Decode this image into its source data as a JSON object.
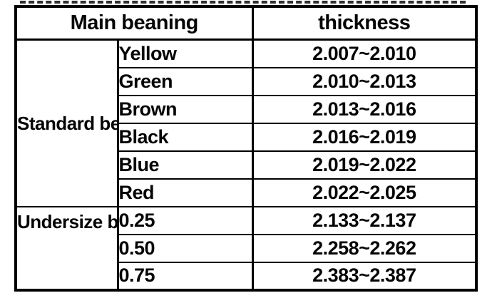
{
  "page": {
    "background": "#ffffff",
    "ink": "#000000"
  },
  "table": {
    "header": {
      "main_bearing": "Main beaning",
      "thickness": "thickness"
    },
    "groups": [
      {
        "name": "Standard bearing",
        "rows": [
          {
            "label": "Yellow",
            "thickness": "2.007~2.010"
          },
          {
            "label": "Green",
            "thickness": "2.010~2.013"
          },
          {
            "label": "Brown",
            "thickness": "2.013~2.016"
          },
          {
            "label": "Black",
            "thickness": "2.016~2.019"
          },
          {
            "label": "Blue",
            "thickness": "2.019~2.022"
          },
          {
            "label": "Red",
            "thickness": "2.022~2.025"
          }
        ]
      },
      {
        "name": "Undersize bearing",
        "rows": [
          {
            "label": "0.25",
            "thickness": "2.133~2.137"
          },
          {
            "label": "0.50",
            "thickness": "2.258~2.262"
          },
          {
            "label": "0.75",
            "thickness": "2.383~2.387"
          }
        ]
      }
    ]
  }
}
